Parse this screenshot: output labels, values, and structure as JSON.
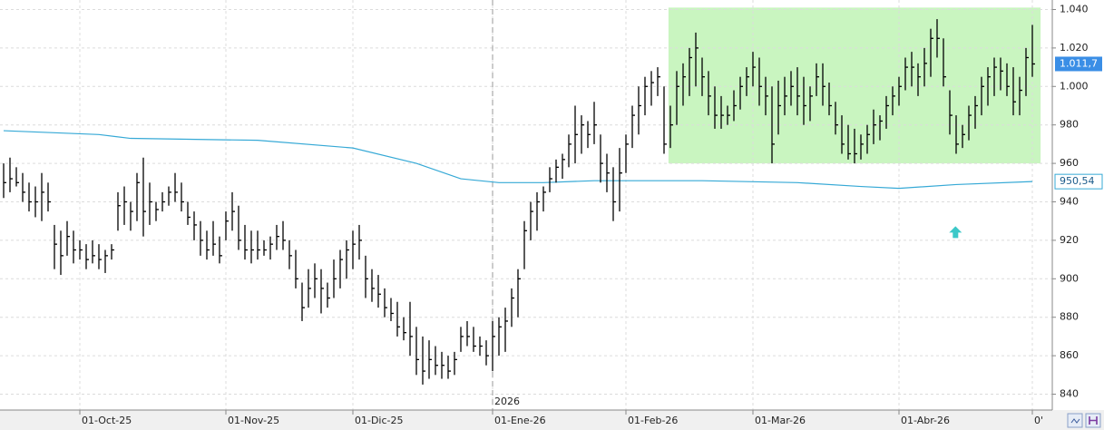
{
  "chart_data": {
    "type": "ohlc",
    "color": "#000000",
    "categories": [
      null,
      null,
      null,
      null,
      null,
      null,
      null,
      null,
      null,
      null,
      null,
      null,
      "01-Oct-25",
      null,
      null,
      null,
      null,
      null,
      null,
      null,
      null,
      null,
      null,
      null,
      null,
      null,
      null,
      null,
      null,
      null,
      null,
      null,
      null,
      null,
      null,
      "01-Nov-25",
      null,
      null,
      null,
      null,
      null,
      null,
      null,
      null,
      null,
      null,
      null,
      null,
      null,
      null,
      null,
      null,
      null,
      null,
      null,
      "01-Dic-25",
      null,
      null,
      null,
      null,
      null,
      null,
      null,
      null,
      null,
      null,
      null,
      null,
      null,
      null,
      null,
      null,
      null,
      null,
      null,
      null,
      null,
      "01-Ene-26",
      null,
      null,
      null,
      null,
      null,
      null,
      null,
      null,
      null,
      null,
      null,
      null,
      null,
      null,
      null,
      null,
      null,
      null,
      null,
      null,
      "01-Feb-26",
      null,
      null,
      null,
      null,
      null,
      null,
      null,
      null,
      null,
      null,
      null,
      null,
      null,
      null,
      null,
      null,
      null,
      null,
      null,
      "01-Mar-26",
      null,
      null,
      null,
      null,
      null,
      null,
      null,
      null,
      null,
      null,
      null,
      null,
      null,
      null,
      null,
      null,
      null,
      null,
      null,
      null,
      null,
      null,
      "01-Abr-26",
      null,
      null,
      null,
      null,
      null,
      null,
      null,
      null,
      null,
      null,
      null,
      null,
      null,
      null,
      null,
      null,
      null,
      null,
      null,
      null,
      "0'"
    ],
    "high": [
      960,
      963,
      958,
      955,
      950,
      948,
      955,
      950,
      928,
      925,
      930,
      925,
      920,
      918,
      920,
      918,
      915,
      918,
      945,
      948,
      940,
      955,
      963,
      950,
      940,
      945,
      948,
      955,
      950,
      940,
      935,
      930,
      925,
      930,
      922,
      935,
      945,
      938,
      928,
      925,
      925,
      920,
      922,
      928,
      930,
      920,
      915,
      898,
      905,
      908,
      905,
      898,
      910,
      915,
      920,
      925,
      928,
      912,
      905,
      902,
      895,
      890,
      888,
      880,
      888,
      875,
      870,
      868,
      865,
      862,
      860,
      862,
      875,
      878,
      875,
      870,
      868,
      878,
      880,
      885,
      895,
      905,
      930,
      940,
      945,
      948,
      958,
      962,
      965,
      975,
      990,
      985,
      982,
      992,
      975,
      965,
      958,
      968,
      975,
      990,
      1000,
      1005,
      1008,
      1010,
      1000,
      990,
      1008,
      1012,
      1020,
      1028,
      1015,
      1008,
      1000,
      995,
      990,
      998,
      1005,
      1010,
      1018,
      1015,
      1005,
      1000,
      1003,
      1005,
      1008,
      1010,
      1005,
      1000,
      1012,
      1012,
      1002,
      992,
      985,
      980,
      978,
      975,
      980,
      988,
      985,
      995,
      1000,
      1005,
      1015,
      1018,
      1012,
      1020,
      1030,
      1035,
      1025,
      998,
      985,
      980,
      990,
      995,
      1005,
      1010,
      1015,
      1015,
      1012,
      1010,
      1005,
      1020,
      1032
    ],
    "low": [
      942,
      945,
      948,
      940,
      935,
      932,
      930,
      935,
      905,
      902,
      912,
      908,
      910,
      905,
      908,
      905,
      903,
      910,
      925,
      928,
      925,
      930,
      922,
      928,
      930,
      935,
      938,
      940,
      935,
      928,
      920,
      912,
      910,
      912,
      908,
      920,
      925,
      915,
      910,
      908,
      910,
      912,
      910,
      915,
      915,
      905,
      895,
      878,
      885,
      890,
      882,
      885,
      890,
      895,
      900,
      905,
      910,
      890,
      888,
      885,
      880,
      878,
      870,
      868,
      860,
      850,
      845,
      848,
      850,
      848,
      848,
      850,
      862,
      865,
      862,
      860,
      855,
      852,
      860,
      862,
      875,
      880,
      905,
      920,
      925,
      935,
      945,
      950,
      952,
      958,
      960,
      965,
      968,
      970,
      950,
      945,
      930,
      935,
      955,
      968,
      975,
      985,
      990,
      995,
      965,
      968,
      980,
      990,
      995,
      1000,
      995,
      985,
      978,
      978,
      980,
      982,
      988,
      995,
      1000,
      990,
      985,
      960,
      975,
      985,
      990,
      985,
      980,
      982,
      995,
      990,
      985,
      975,
      965,
      962,
      960,
      962,
      965,
      970,
      972,
      978,
      985,
      990,
      998,
      1000,
      995,
      1000,
      1005,
      1015,
      1000,
      975,
      965,
      968,
      972,
      978,
      985,
      990,
      995,
      998,
      995,
      985,
      985,
      995,
      1005
    ],
    "close": [
      950,
      952,
      950,
      945,
      940,
      940,
      945,
      940,
      918,
      912,
      922,
      915,
      915,
      910,
      912,
      910,
      912,
      915,
      938,
      940,
      935,
      950,
      935,
      940,
      936,
      940,
      945,
      945,
      940,
      932,
      928,
      920,
      915,
      918,
      912,
      930,
      935,
      920,
      915,
      915,
      915,
      915,
      918,
      922,
      920,
      912,
      900,
      885,
      895,
      900,
      895,
      890,
      900,
      910,
      915,
      918,
      920,
      900,
      895,
      892,
      885,
      882,
      875,
      872,
      870,
      858,
      852,
      858,
      855,
      855,
      852,
      858,
      870,
      870,
      865,
      865,
      860,
      870,
      875,
      878,
      890,
      900,
      925,
      935,
      940,
      945,
      952,
      958,
      962,
      970,
      975,
      980,
      975,
      980,
      960,
      955,
      940,
      955,
      970,
      985,
      990,
      1000,
      1002,
      1005,
      970,
      980,
      1000,
      1005,
      1015,
      1020,
      1005,
      995,
      985,
      985,
      985,
      990,
      1000,
      1005,
      1010,
      1000,
      995,
      970,
      990,
      995,
      1000,
      995,
      990,
      995,
      1005,
      1000,
      990,
      980,
      970,
      965,
      965,
      970,
      975,
      980,
      982,
      990,
      995,
      1000,
      1010,
      1010,
      1005,
      1012,
      1025,
      1025,
      1005,
      985,
      970,
      975,
      985,
      990,
      1000,
      1005,
      1010,
      1008,
      1000,
      992,
      998,
      1015,
      1011.7
    ],
    "ma": {
      "color": "#36a9d6",
      "x": [
        0,
        15,
        20,
        40,
        55,
        65,
        72,
        78,
        85,
        93,
        110,
        125,
        135,
        141,
        150,
        162
      ],
      "values": [
        977,
        975,
        973,
        972,
        968,
        960,
        952,
        950,
        950,
        951,
        951,
        950,
        948,
        947,
        949,
        950.54
      ]
    },
    "zone": {
      "color": "#c9f5c0",
      "x": [
        104.7,
        163.3
      ],
      "y": [
        960,
        1041
      ]
    },
    "arrow": {
      "color": "#3cc8c8",
      "x": 149.9,
      "y": 924
    },
    "year_divider": {
      "x": 77,
      "label": "2026"
    },
    "last_price": {
      "value": 1011.7,
      "label": "1.011,7"
    },
    "ma_last": {
      "value": 950.54,
      "label": "950,54"
    },
    "ylim": [
      836,
      1044
    ],
    "yticks": [
      840,
      860,
      880,
      900,
      920,
      940,
      960,
      980,
      {
        "value": 1000,
        "label": "1.000"
      },
      {
        "value": 1020,
        "label": "1.020"
      },
      {
        "value": 1040,
        "label": "1.040"
      }
    ],
    "grid": true
  }
}
